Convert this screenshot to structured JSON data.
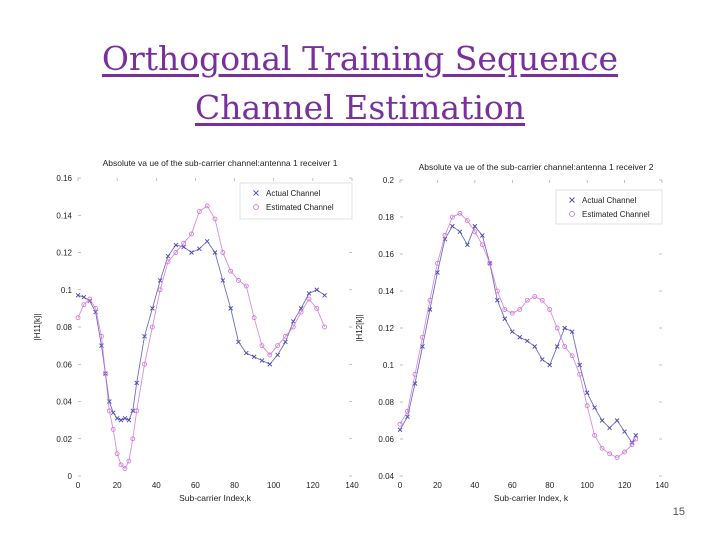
{
  "slide": {
    "title_line1": "Orthogonal Training Sequence",
    "title_line2": "Channel Estimation",
    "page_number": "15",
    "colors": {
      "title": "#7a2f9e",
      "actual": "#4a4ab8",
      "estimated": "#d070d8"
    }
  },
  "chart_data": [
    {
      "type": "line",
      "title": "Absolute va ue of the sub-carrier channel:antenna 1 receiver 1",
      "xlabel": "Sub-carrier Index,k",
      "ylabel": "|H11[k]|",
      "xlim": [
        0,
        140
      ],
      "ylim": [
        0,
        0.16
      ],
      "xticks": [
        "0",
        "20",
        "40",
        "60",
        "80",
        "100",
        "120",
        "140"
      ],
      "yticks": [
        "0",
        "0.02",
        "0.04",
        "0.06",
        "0.08",
        "0.1",
        "0.12",
        "0.14",
        "0.16"
      ],
      "legend_position": "top-right",
      "series": [
        {
          "name": "Actual Channel",
          "marker": "x",
          "x": [
            0,
            3,
            6,
            9,
            12,
            14,
            16,
            18,
            20,
            22,
            24,
            26,
            28,
            30,
            34,
            38,
            42,
            46,
            50,
            54,
            58,
            62,
            66,
            70,
            74,
            78,
            82,
            86,
            90,
            94,
            98,
            102,
            106,
            110,
            114,
            118,
            122,
            126
          ],
          "y": [
            0.097,
            0.096,
            0.094,
            0.088,
            0.07,
            0.055,
            0.04,
            0.034,
            0.031,
            0.03,
            0.031,
            0.03,
            0.035,
            0.05,
            0.075,
            0.09,
            0.105,
            0.118,
            0.124,
            0.123,
            0.12,
            0.122,
            0.126,
            0.12,
            0.105,
            0.09,
            0.072,
            0.066,
            0.064,
            0.062,
            0.06,
            0.065,
            0.072,
            0.083,
            0.09,
            0.098,
            0.1,
            0.097
          ]
        },
        {
          "name": "Estimated Channel",
          "marker": "o",
          "x": [
            0,
            3,
            6,
            9,
            12,
            14,
            16,
            18,
            20,
            22,
            24,
            26,
            28,
            30,
            34,
            38,
            42,
            46,
            50,
            54,
            58,
            62,
            66,
            70,
            74,
            78,
            82,
            86,
            90,
            94,
            98,
            102,
            106,
            110,
            114,
            118,
            122,
            126
          ],
          "y": [
            0.085,
            0.092,
            0.095,
            0.09,
            0.075,
            0.055,
            0.035,
            0.025,
            0.012,
            0.006,
            0.004,
            0.008,
            0.02,
            0.035,
            0.06,
            0.08,
            0.1,
            0.115,
            0.12,
            0.125,
            0.13,
            0.142,
            0.145,
            0.138,
            0.12,
            0.11,
            0.105,
            0.102,
            0.085,
            0.07,
            0.065,
            0.07,
            0.075,
            0.08,
            0.088,
            0.095,
            0.09,
            0.08
          ]
        }
      ]
    },
    {
      "type": "line",
      "title": "Absolute va ue of the sub-carrier channel:antenna 1 receiver 2",
      "xlabel": "Sub-carrier Index, k",
      "ylabel": "|H12[k]|",
      "xlim": [
        0,
        140
      ],
      "ylim": [
        0.04,
        0.2
      ],
      "xticks": [
        "0",
        "20",
        "40",
        "60",
        "80",
        "100",
        "120",
        "140"
      ],
      "yticks": [
        "0.04",
        "0.06",
        "0.08",
        "0.1",
        "0.12",
        "0.14",
        "0.16",
        "0.18",
        "0.2"
      ],
      "legend_position": "top-right",
      "series": [
        {
          "name": "Actual Channel",
          "marker": "x",
          "x": [
            0,
            4,
            8,
            12,
            16,
            20,
            24,
            28,
            32,
            36,
            40,
            44,
            48,
            52,
            56,
            60,
            64,
            68,
            72,
            76,
            80,
            84,
            88,
            92,
            96,
            100,
            104,
            108,
            112,
            116,
            120,
            124,
            126
          ],
          "y": [
            0.065,
            0.072,
            0.09,
            0.11,
            0.13,
            0.15,
            0.168,
            0.175,
            0.172,
            0.165,
            0.175,
            0.17,
            0.155,
            0.135,
            0.125,
            0.118,
            0.115,
            0.113,
            0.11,
            0.103,
            0.1,
            0.11,
            0.12,
            0.118,
            0.1,
            0.085,
            0.077,
            0.07,
            0.066,
            0.07,
            0.064,
            0.058,
            0.062
          ]
        },
        {
          "name": "Estimated Channel",
          "marker": "o",
          "x": [
            0,
            4,
            8,
            12,
            16,
            20,
            24,
            28,
            32,
            36,
            40,
            44,
            48,
            52,
            56,
            60,
            64,
            68,
            72,
            76,
            80,
            84,
            88,
            92,
            96,
            100,
            104,
            108,
            112,
            116,
            120,
            124,
            126
          ],
          "y": [
            0.068,
            0.075,
            0.095,
            0.115,
            0.135,
            0.155,
            0.17,
            0.18,
            0.182,
            0.178,
            0.172,
            0.165,
            0.155,
            0.14,
            0.13,
            0.128,
            0.13,
            0.135,
            0.137,
            0.135,
            0.13,
            0.12,
            0.11,
            0.105,
            0.095,
            0.078,
            0.062,
            0.055,
            0.052,
            0.05,
            0.053,
            0.057,
            0.06
          ]
        }
      ]
    }
  ]
}
